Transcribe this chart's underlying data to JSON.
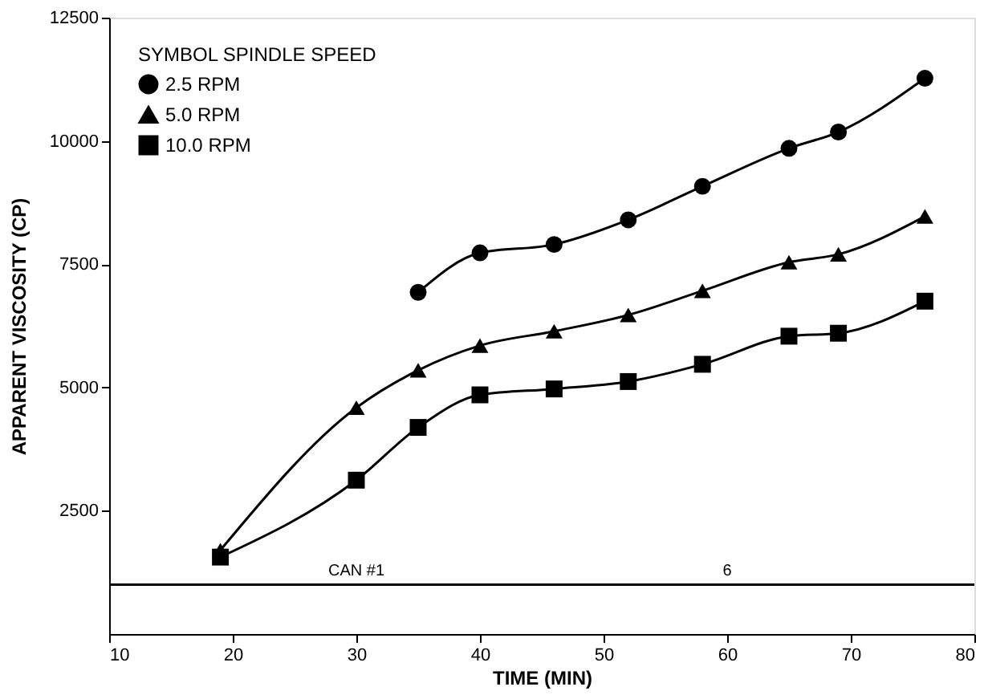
{
  "chart_data": {
    "type": "line",
    "xlabel": "TIME  (MIN)",
    "ylabel": "APPARENT  VISCOSITY  (CP)",
    "legend_title": "SYMBOL    SPINDLE SPEED",
    "series": [
      {
        "name": "2.5   RPM",
        "color": "#000000",
        "marker": "circle",
        "x": [
          35,
          40,
          46,
          52,
          58,
          65,
          69,
          76
        ],
        "values": [
          6930,
          7730,
          7900,
          8400,
          9080,
          9850,
          10180,
          11270
        ]
      },
      {
        "name": "5.0   RPM",
        "color": "#000000",
        "marker": "triangle",
        "x": [
          19,
          30,
          35,
          40,
          46,
          52,
          58,
          65,
          69,
          76
        ],
        "values": [
          1700,
          4590,
          5350,
          5850,
          6140,
          6470,
          6960,
          7540,
          7700,
          8470
        ]
      },
      {
        "name": "10.0  RPM",
        "color": "#000000",
        "marker": "square",
        "x": [
          19,
          30,
          35,
          40,
          46,
          52,
          58,
          65,
          69,
          76
        ],
        "values": [
          1560,
          3120,
          4190,
          4850,
          4970,
          5120,
          5470,
          6040,
          6100,
          6750
        ]
      }
    ],
    "xlim": [
      10,
      80
    ],
    "xticks": [
      10,
      20,
      30,
      40,
      50,
      60,
      70,
      80
    ],
    "ylim": [
      0,
      12500
    ],
    "yticks": [
      2500,
      5000,
      7500,
      10000,
      12500
    ],
    "ref_lines": [
      {
        "axis": "y",
        "value": 1000,
        "color": "#000000"
      }
    ],
    "annotations": [
      {
        "text": "CAN #1",
        "x": 30,
        "y": 1000
      },
      {
        "text": "6",
        "x": 60,
        "y": 1000
      }
    ],
    "grid": false,
    "legend": "top left",
    "line_style": "solid"
  }
}
